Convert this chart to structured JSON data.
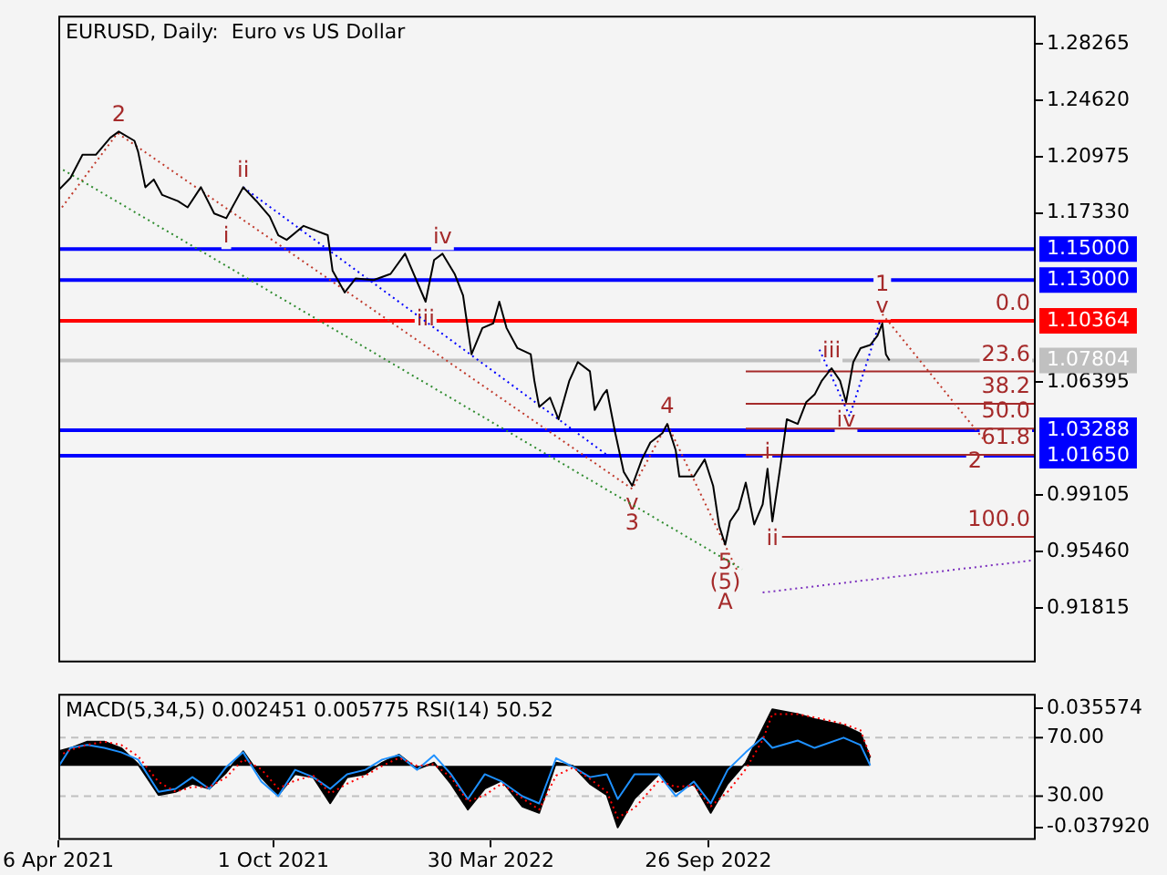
{
  "chart_data": [
    {
      "type": "line",
      "title": "EURUSD, Daily:  Euro vs US Dollar",
      "x": [
        "2021-04-06",
        "2021-04-16",
        "2021-04-26",
        "2021-05-07",
        "2021-05-19",
        "2021-05-26",
        "2021-06-08",
        "2021-06-11",
        "2021-06-17",
        "2021-06-24",
        "2021-07-01",
        "2021-07-14",
        "2021-07-22",
        "2021-08-02",
        "2021-08-13",
        "2021-08-23",
        "2021-09-06",
        "2021-09-17",
        "2021-09-28",
        "2021-10-05",
        "2021-10-12",
        "2021-10-26",
        "2021-11-15",
        "2021-11-19",
        "2021-11-29",
        "2021-12-08",
        "2021-12-23",
        "2022-01-06",
        "2022-01-18",
        "2022-02-04",
        "2022-02-11",
        "2022-02-18",
        "2022-02-28",
        "2022-03-07",
        "2022-03-14",
        "2022-03-23",
        "2022-04-01",
        "2022-04-06",
        "2022-04-12",
        "2022-04-21",
        "2022-05-02",
        "2022-05-05",
        "2022-05-09",
        "2022-05-18",
        "2022-05-25",
        "2022-06-03",
        "2022-06-10",
        "2022-06-20",
        "2022-06-24",
        "2022-07-01",
        "2022-07-04",
        "2022-07-11",
        "2022-07-18",
        "2022-07-25",
        "2022-08-02",
        "2022-08-09",
        "2022-08-19",
        "2022-08-23",
        "2022-08-30",
        "2022-09-02",
        "2022-09-14",
        "2022-09-23",
        "2022-09-30",
        "2022-10-05",
        "2022-10-10",
        "2022-10-14",
        "2022-10-21",
        "2022-10-27",
        "2022-11-03",
        "2022-11-10",
        "2022-11-14",
        "2022-11-18",
        "2022-11-24",
        "2022-11-30",
        "2022-12-09",
        "2022-12-16",
        "2022-12-23",
        "2022-12-29",
        "2023-01-06",
        "2023-01-13",
        "2023-01-18",
        "2023-01-24",
        "2023-01-30",
        "2023-02-07",
        "2023-02-13",
        "2023-02-17",
        "2023-02-20",
        "2023-02-23"
      ],
      "series": [
        {
          "color": "#000000",
          "values": [
            1.188,
            1.196,
            1.211,
            1.211,
            1.222,
            1.226,
            1.22,
            1.213,
            1.19,
            1.195,
            1.185,
            1.181,
            1.177,
            1.19,
            1.173,
            1.17,
            1.19,
            1.181,
            1.171,
            1.159,
            1.156,
            1.165,
            1.159,
            1.136,
            1.122,
            1.131,
            1.13,
            1.134,
            1.147,
            1.116,
            1.143,
            1.147,
            1.134,
            1.12,
            1.082,
            1.099,
            1.102,
            1.116,
            1.099,
            1.086,
            1.082,
            1.065,
            1.048,
            1.054,
            1.04,
            1.065,
            1.077,
            1.071,
            1.046,
            1.056,
            1.059,
            1.031,
            1.006,
            0.997,
            1.014,
            1.025,
            1.031,
            1.037,
            1.02,
            1.003,
            1.003,
            1.014,
            0.997,
            0.971,
            0.959,
            0.974,
            0.982,
            0.999,
            0.972,
            0.985,
            1.008,
            0.974,
            1.006,
            1.04,
            1.037,
            1.051,
            1.056,
            1.065,
            1.073,
            1.065,
            1.051,
            1.077,
            1.086,
            1.088,
            1.094,
            1.102,
            1.082,
            1.078
          ]
        },
        {
          "type": "line",
          "color": "#2e8b2e",
          "line_style": "dotted",
          "x": [
            "2021-04-06",
            "2022-10-24"
          ],
          "values": [
            1.203,
            0.943
          ]
        },
        {
          "type": "line",
          "color": "#c0392b",
          "line_style": "dotted",
          "x": [
            "2021-04-09",
            "2021-05-25",
            "2022-07-25",
            "2022-08-23",
            "2022-10-20"
          ],
          "values": [
            1.177,
            1.225,
            0.995,
            1.037,
            0.942
          ]
        },
        {
          "type": "line",
          "color": "#c0392b",
          "line_style": "dotted",
          "x": [
            "2023-02-17",
            "2023-05-15"
          ],
          "values": [
            1.108,
            1.024
          ]
        },
        {
          "type": "line",
          "color": "#0000ff",
          "line_style": "dotted",
          "x": [
            "2021-09-06",
            "2022-07-04"
          ],
          "values": [
            1.19,
            1.017
          ]
        },
        {
          "type": "line",
          "color": "#0000ff",
          "line_style": "dotted",
          "x": [
            "2022-12-27",
            "2023-01-21",
            "2023-02-15"
          ],
          "values": [
            1.085,
            1.042,
            1.103
          ]
        },
        {
          "type": "line",
          "color": "#7b2fbe",
          "line_style": "dotted",
          "x": [
            "2022-11-10",
            "2023-06-24"
          ],
          "values": [
            0.928,
            0.949
          ]
        },
        {
          "type": "line",
          "color": "#a52a2a",
          "x": [
            "2022-10-27",
            "2023-06-24"
          ],
          "values": [
            1.071,
            1.071
          ]
        },
        {
          "type": "line",
          "color": "#a52a2a",
          "x": [
            "2022-10-27",
            "2023-06-24"
          ],
          "values": [
            1.05,
            1.05
          ]
        },
        {
          "type": "line",
          "color": "#a52a2a",
          "x": [
            "2022-10-27",
            "2023-06-24"
          ],
          "values": [
            1.034,
            1.034
          ]
        },
        {
          "type": "line",
          "color": "#a52a2a",
          "x": [
            "2022-10-27",
            "2023-06-24"
          ],
          "values": [
            1.017,
            1.017
          ]
        },
        {
          "type": "line",
          "color": "#a52a2a",
          "x": [
            "2022-11-26",
            "2023-06-24"
          ],
          "values": [
            0.964,
            0.964
          ]
        }
      ],
      "xlim": [
        "2021-04-06",
        "2023-06-24"
      ],
      "ylim": [
        0.8828,
        1.3009
      ],
      "yticks": [
        1.28265,
        {
          "value": 1.2462,
          "label": "1.24620"
        },
        1.20975,
        {
          "value": 1.1733,
          "label": "1.17330"
        },
        1.06395,
        0.99105,
        {
          "value": 0.9546,
          "label": "0.95460"
        },
        0.91815
      ],
      "tick_labels": "y",
      "ref_lines": [
        {
          "axis": "y",
          "value": 1.15,
          "label": "1.15000",
          "color": "#0000ff"
        },
        {
          "axis": "y",
          "value": 1.13,
          "label": "1.13000",
          "color": "#0000ff"
        },
        {
          "axis": "y",
          "value": 1.10364,
          "label": "1.10364",
          "color": "#ff0000"
        },
        {
          "axis": "y",
          "value": 1.07804,
          "label": "1.07804",
          "color": "#c0c0c0"
        },
        {
          "axis": "y",
          "value": 1.03288,
          "label": "1.03288",
          "color": "#0000ff"
        },
        {
          "axis": "y",
          "value": 1.0165,
          "label": "1.01650",
          "color": "#0000ff"
        }
      ],
      "annotations": [
        {
          "text": "2",
          "x": "2021-05-26",
          "y": 1.226
        },
        {
          "text": "ii",
          "x": "2021-09-06",
          "y": 1.19
        },
        {
          "text": "i",
          "x": "2021-08-23",
          "y": 1.17
        },
        {
          "text": "iv",
          "x": "2022-02-18",
          "y": 1.147
        },
        {
          "text": "iii",
          "x": "2022-02-04",
          "y": 1.116
        },
        {
          "text": "v",
          "x": "2022-07-25",
          "y": 0.997
        },
        {
          "text": "3",
          "x": "2022-07-25",
          "y": 0.997
        },
        {
          "text": "4",
          "x": "2022-08-23",
          "y": 1.037
        },
        {
          "text": "5",
          "x": "2022-10-10",
          "y": 0.959
        },
        {
          "text": "(5)",
          "x": "2022-10-10",
          "y": 0.959
        },
        {
          "text": "A",
          "x": "2022-10-10",
          "y": 0.959
        },
        {
          "text": "i",
          "x": "2022-11-14",
          "y": 1.008
        },
        {
          "text": "ii",
          "x": "2022-11-18",
          "y": 0.974
        },
        {
          "text": "iii",
          "x": "2023-01-06",
          "y": 1.073
        },
        {
          "text": "iv",
          "x": "2023-01-18",
          "y": 1.051
        },
        {
          "text": "v",
          "x": "2023-02-17",
          "y": 1.102
        },
        {
          "text": "1",
          "x": "2023-02-17",
          "y": 1.102
        },
        {
          "text": "2",
          "x": "2023-05-15",
          "y": 1.024
        },
        {
          "text": "0.0",
          "x": "2023-06-24",
          "y": 1.10364
        },
        {
          "text": "23.6",
          "x": "2023-06-24",
          "y": 1.071
        },
        {
          "text": "38.2",
          "x": "2023-06-24",
          "y": 1.05
        },
        {
          "text": "50.0",
          "x": "2023-06-24",
          "y": 1.034
        },
        {
          "text": "61.8",
          "x": "2023-06-24",
          "y": 1.017
        },
        {
          "text": "100.0",
          "x": "2023-06-24",
          "y": 0.964
        }
      ]
    },
    {
      "type": "area",
      "title": "MACD(5,34,5) 0.002451 0.005775 RSI(14) 50.52",
      "x": [
        "2021-04-06",
        "2021-04-16",
        "2021-04-30",
        "2021-05-14",
        "2021-05-28",
        "2021-06-11",
        "2021-06-28",
        "2021-07-12",
        "2021-07-26",
        "2021-08-09",
        "2021-08-23",
        "2021-09-06",
        "2021-09-21",
        "2021-10-05",
        "2021-10-19",
        "2021-11-03",
        "2021-11-17",
        "2021-12-01",
        "2021-12-16",
        "2021-12-30",
        "2022-01-13",
        "2022-01-28",
        "2022-02-11",
        "2022-02-25",
        "2022-03-11",
        "2022-03-25",
        "2022-04-08",
        "2022-04-25",
        "2022-05-09",
        "2022-05-23",
        "2022-06-06",
        "2022-06-20",
        "2022-07-04",
        "2022-07-13",
        "2022-07-27",
        "2022-08-16",
        "2022-08-30",
        "2022-09-14",
        "2022-09-28",
        "2022-10-12",
        "2022-10-27",
        "2022-11-10",
        "2022-11-18",
        "2022-12-09",
        "2022-12-23",
        "2023-01-16",
        "2023-01-30",
        "2023-02-07"
      ],
      "series": [
        {
          "color": "#000000",
          "values": [
            0.009,
            0.011,
            0.015,
            0.015,
            0.011,
            0.001,
            -0.018,
            -0.016,
            -0.011,
            -0.014,
            -0.004,
            0.009,
            -0.007,
            -0.018,
            -0.005,
            -0.007,
            -0.023,
            -0.007,
            -0.005,
            0.002,
            0.007,
            -0.002,
            0.002,
            -0.011,
            -0.027,
            -0.014,
            -0.009,
            -0.025,
            -0.029,
            0.002,
            0,
            -0.011,
            -0.018,
            -0.038,
            -0.02,
            -0.005,
            -0.016,
            -0.011,
            -0.029,
            -0.011,
            0.002,
            0.023,
            0.035,
            0.032,
            0.029,
            0.025,
            0.02,
            0.005
          ]
        },
        {
          "type": "line",
          "color": "#ff0000",
          "line_style": "dotted",
          "values": [
            0.006,
            0.01,
            0.013,
            0.015,
            0.013,
            0.006,
            -0.01,
            -0.016,
            -0.013,
            -0.013,
            -0.007,
            0.004,
            -0.002,
            -0.014,
            -0.009,
            -0.006,
            -0.017,
            -0.011,
            -0.006,
            0,
            0.005,
            0,
            0.001,
            -0.007,
            -0.022,
            -0.018,
            -0.011,
            -0.02,
            -0.027,
            -0.006,
            -0.001,
            -0.008,
            -0.016,
            -0.032,
            -0.026,
            -0.009,
            -0.013,
            -0.012,
            -0.025,
            -0.016,
            -0.002,
            0.016,
            0.032,
            0.032,
            0.03,
            0.026,
            0.022,
            0.006
          ]
        },
        {
          "type": "line",
          "color": "#1e90ff",
          "axis": "y2",
          "values": [
            50,
            63,
            65,
            63,
            60,
            55,
            33,
            35,
            43,
            35,
            50,
            60,
            40,
            30,
            48,
            43,
            35,
            45,
            48,
            55,
            58,
            48,
            58,
            45,
            28,
            45,
            40,
            30,
            25,
            56,
            50,
            43,
            45,
            28,
            45,
            45,
            30,
            40,
            25,
            48,
            60,
            70,
            63,
            68,
            63,
            70,
            65,
            51
          ]
        }
      ],
      "xlim": [
        "2021-04-06",
        "2023-06-24"
      ],
      "xticks": [
        {
          "value": "2021-04-06",
          "label": "6 Apr 2021"
        },
        {
          "value": "2021-10-01",
          "label": "1 Oct 2021"
        },
        {
          "value": "2022-03-30",
          "label": "30 Mar 2022"
        },
        {
          "value": "2022-09-26",
          "label": "26 Sep 2022"
        }
      ],
      "ylim": [
        -0.0458,
        0.0446
      ],
      "yticks": [
        0.035574,
        {
          "value": -0.03792,
          "label": "-0.037920"
        }
      ],
      "y2lim": [
        0,
        100
      ],
      "y2ticks": [
        {
          "value": 70,
          "label": "70.00"
        },
        {
          "value": 30,
          "label": "30.00"
        }
      ],
      "ref_lines": [
        {
          "axis": "y2",
          "value": 70,
          "color": "#c0c0c0",
          "line_style": "dashed"
        },
        {
          "axis": "y2",
          "value": 30,
          "color": "#c0c0c0",
          "line_style": "dashed"
        }
      ]
    }
  ]
}
